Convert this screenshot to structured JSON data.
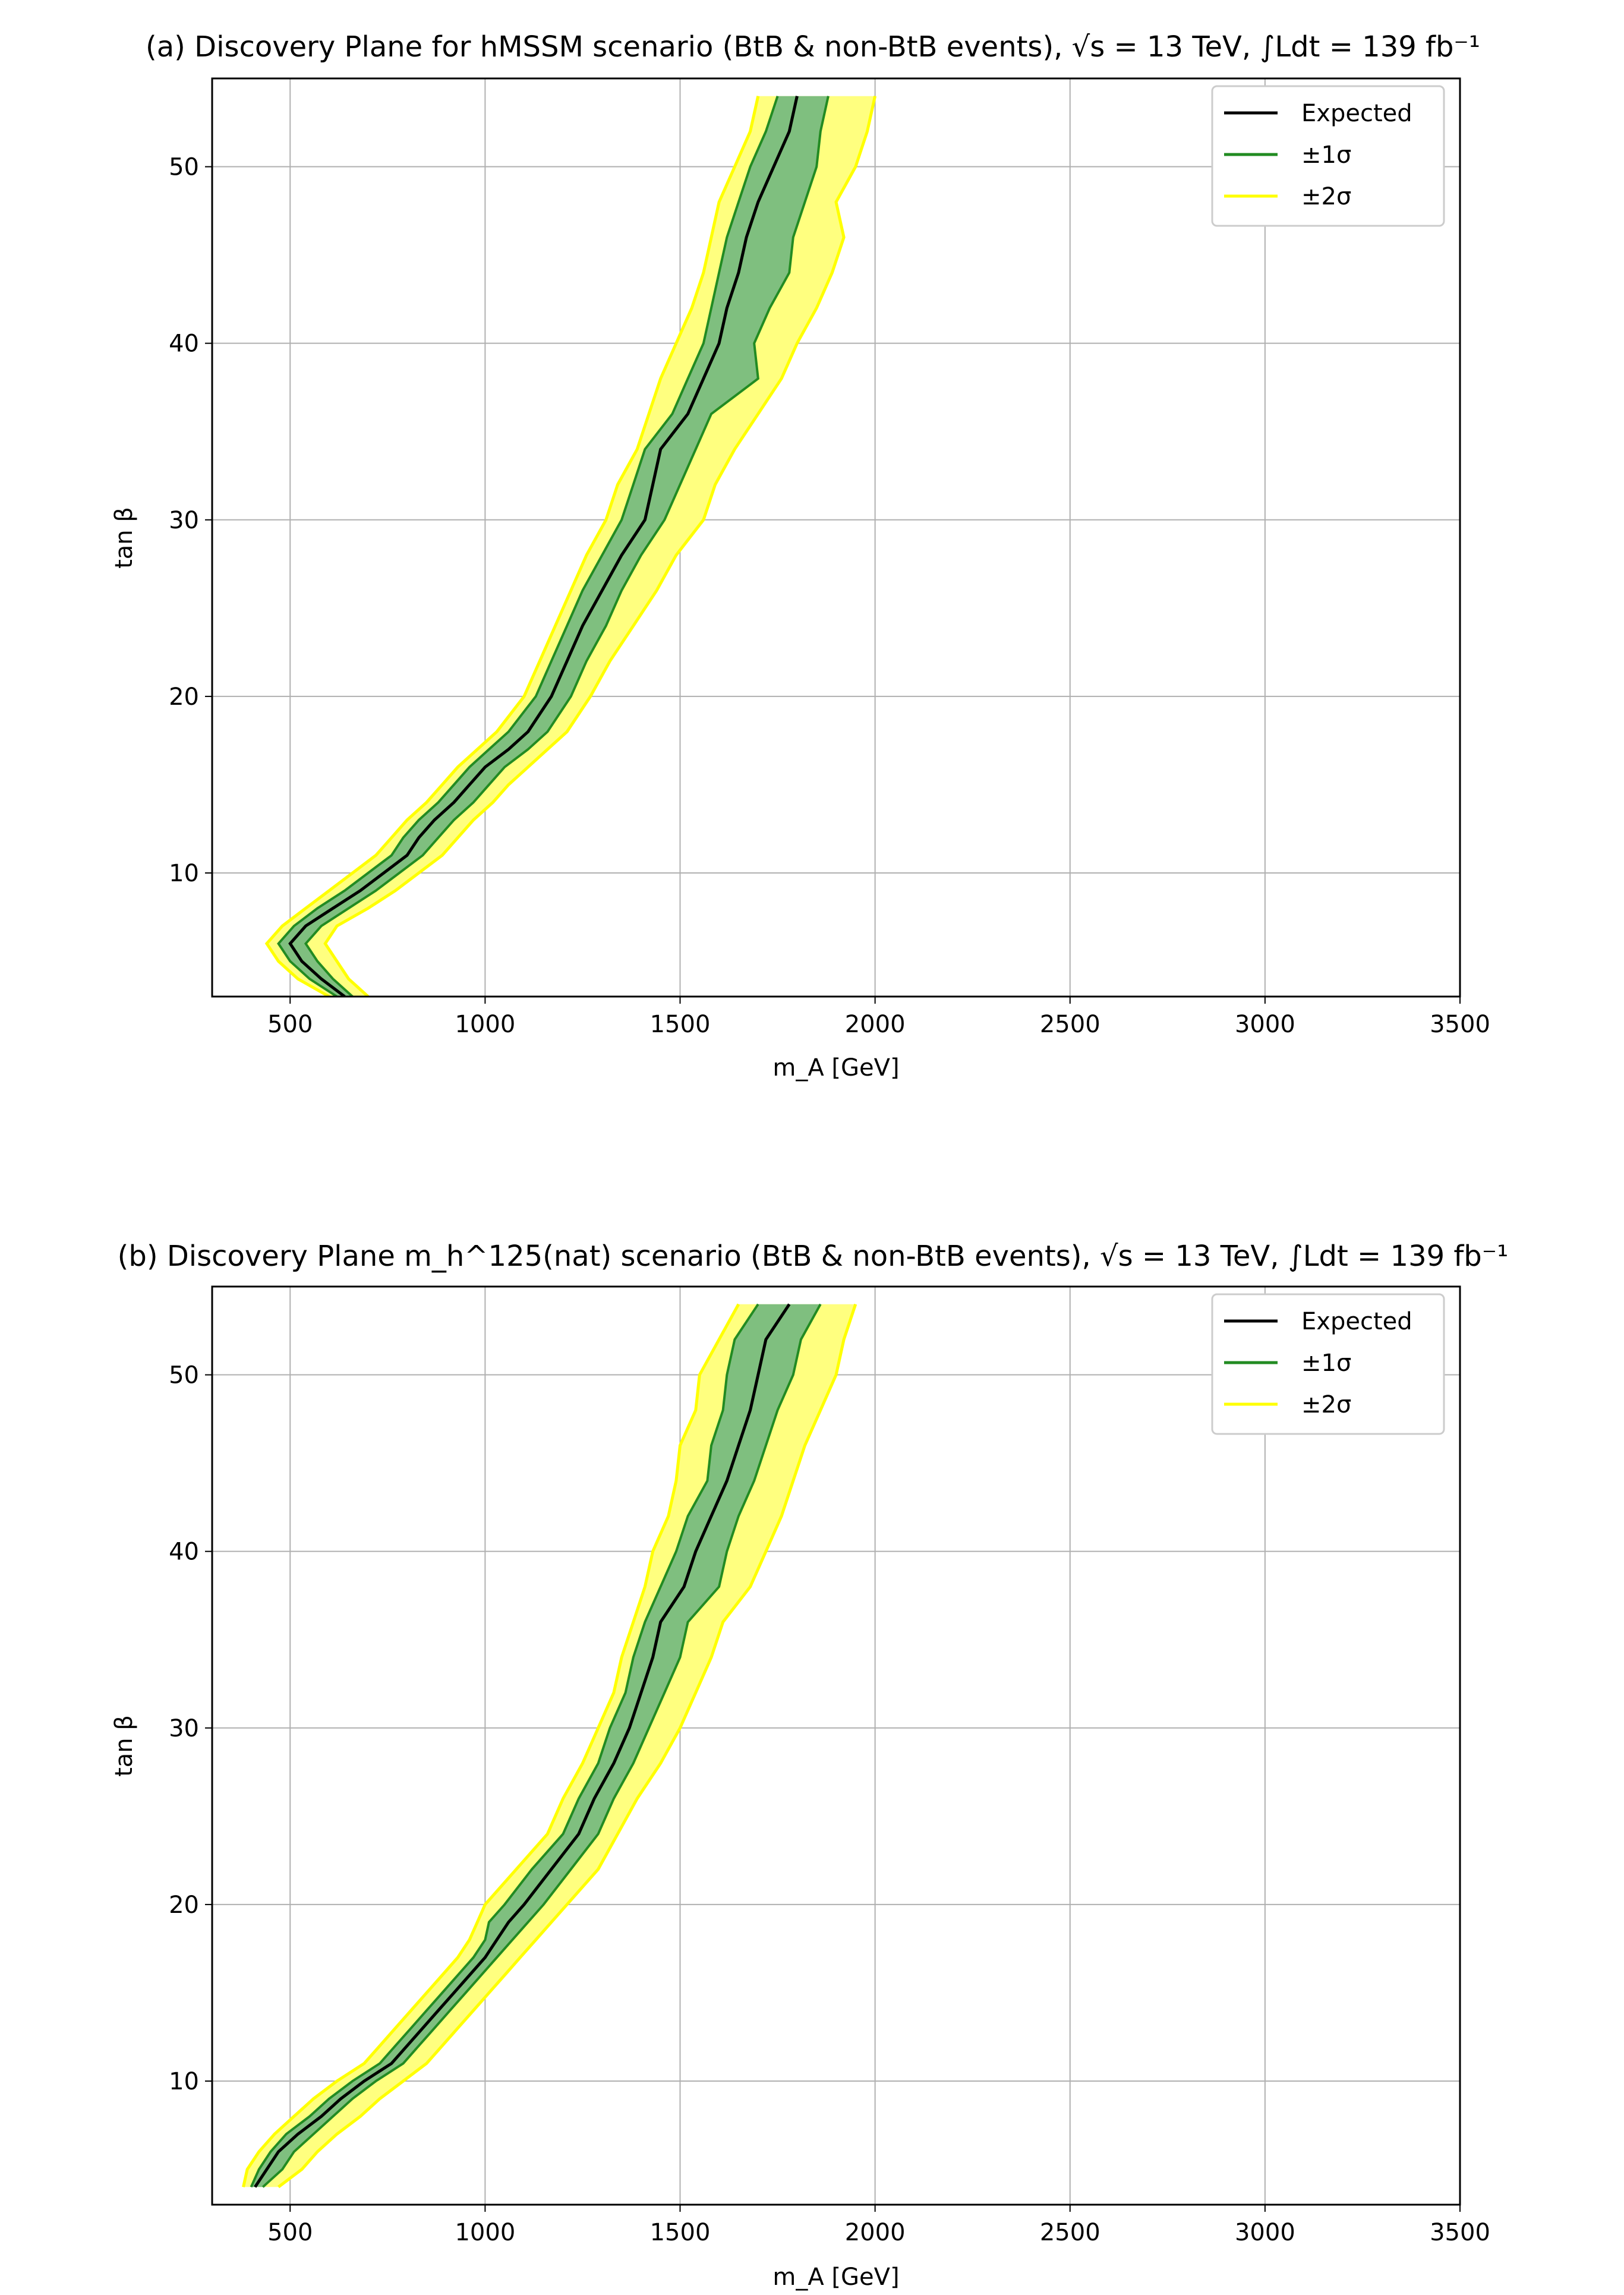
{
  "chart_data": [
    {
      "type": "line",
      "title": "(a) Discovery Plane for hMSSM scenario (BtB & non-BtB events), √s = 13 TeV, ∫Ldt = 139 fb⁻¹",
      "xlabel": "m_A [GeV]",
      "ylabel": "tan β",
      "xlim": [
        300,
        3500
      ],
      "ylim": [
        3,
        55
      ],
      "xticks": [
        "500",
        "1000",
        "1500",
        "2000",
        "2500",
        "3000",
        "3500"
      ],
      "yticks": [
        "10",
        "20",
        "30",
        "40",
        "50"
      ],
      "grid": true,
      "legend_position": "top-right",
      "legend": [
        "Expected",
        "±1σ",
        "±2σ"
      ],
      "colors": {
        "expected": "#000000",
        "one_sigma": "#228b22",
        "one_sigma_fill": "#7fbf7f",
        "two_sigma": "#ffff00",
        "two_sigma_fill": "#ffff7f"
      },
      "series": [
        {
          "name": "Expected",
          "y": [
            3,
            4,
            5,
            6,
            7,
            8,
            9,
            10,
            11,
            12,
            13,
            14,
            15,
            16,
            17,
            18,
            20,
            22,
            24,
            26,
            28,
            30,
            32,
            34,
            36,
            38,
            40,
            42,
            44,
            46,
            48,
            50,
            52,
            54
          ],
          "x": [
            640,
            580,
            530,
            500,
            540,
            610,
            680,
            740,
            800,
            830,
            870,
            920,
            960,
            1000,
            1060,
            1110,
            1170,
            1210,
            1250,
            1300,
            1350,
            1410,
            1430,
            1450,
            1520,
            1560,
            1600,
            1620,
            1650,
            1670,
            1700,
            1740,
            1780,
            1800
          ]
        },
        {
          "name": "±1σ low",
          "y": [
            3,
            4,
            5,
            6,
            7,
            8,
            9,
            10,
            11,
            12,
            13,
            14,
            15,
            16,
            17,
            18,
            20,
            22,
            24,
            26,
            28,
            30,
            32,
            34,
            36,
            38,
            40,
            42,
            44,
            46,
            48,
            50,
            52,
            54
          ],
          "x": [
            620,
            550,
            500,
            470,
            510,
            570,
            640,
            700,
            760,
            790,
            830,
            880,
            920,
            960,
            1010,
            1060,
            1130,
            1170,
            1210,
            1250,
            1300,
            1350,
            1380,
            1410,
            1480,
            1520,
            1560,
            1580,
            1600,
            1620,
            1650,
            1680,
            1720,
            1750
          ]
        },
        {
          "name": "±1σ high",
          "y": [
            3,
            4,
            5,
            6,
            7,
            8,
            9,
            10,
            11,
            12,
            13,
            14,
            15,
            16,
            17,
            18,
            20,
            22,
            24,
            26,
            28,
            30,
            32,
            34,
            36,
            38,
            40,
            42,
            44,
            46,
            48,
            50,
            52,
            54
          ],
          "x": [
            660,
            610,
            570,
            540,
            580,
            650,
            720,
            780,
            840,
            880,
            920,
            970,
            1010,
            1050,
            1110,
            1160,
            1220,
            1260,
            1310,
            1350,
            1400,
            1460,
            1500,
            1540,
            1580,
            1700,
            1690,
            1730,
            1780,
            1790,
            1820,
            1850,
            1860,
            1880
          ]
        },
        {
          "name": "±2σ low",
          "y": [
            3,
            4,
            5,
            6,
            7,
            8,
            9,
            10,
            11,
            12,
            13,
            14,
            15,
            16,
            17,
            18,
            20,
            22,
            24,
            26,
            28,
            30,
            32,
            34,
            36,
            38,
            40,
            42,
            44,
            46,
            48,
            50,
            52,
            54
          ],
          "x": [
            600,
            520,
            470,
            440,
            480,
            540,
            600,
            660,
            720,
            760,
            800,
            850,
            890,
            930,
            980,
            1030,
            1100,
            1140,
            1180,
            1220,
            1260,
            1310,
            1340,
            1390,
            1420,
            1450,
            1490,
            1530,
            1560,
            1580,
            1600,
            1640,
            1680,
            1700
          ]
        },
        {
          "name": "±2σ high",
          "y": [
            3,
            4,
            5,
            6,
            7,
            8,
            9,
            10,
            11,
            12,
            13,
            14,
            15,
            16,
            17,
            18,
            20,
            22,
            24,
            26,
            28,
            30,
            32,
            34,
            36,
            38,
            40,
            42,
            44,
            46,
            48,
            50,
            52,
            54
          ],
          "x": [
            700,
            650,
            620,
            590,
            620,
            700,
            770,
            830,
            890,
            930,
            970,
            1020,
            1060,
            1110,
            1160,
            1210,
            1270,
            1320,
            1380,
            1440,
            1490,
            1560,
            1590,
            1640,
            1700,
            1760,
            1800,
            1850,
            1890,
            1920,
            1900,
            1950,
            1980,
            2000
          ]
        }
      ]
    },
    {
      "type": "line",
      "title": "(b) Discovery Plane m_h^125(nat) scenario (BtB & non-BtB events), √s = 13 TeV, ∫Ldt = 139 fb⁻¹",
      "xlabel": "m_A [GeV]",
      "ylabel": "tan β",
      "xlim": [
        300,
        3500
      ],
      "ylim": [
        3,
        55
      ],
      "xticks": [
        "500",
        "1000",
        "1500",
        "2000",
        "2500",
        "3000",
        "3500"
      ],
      "yticks": [
        "10",
        "20",
        "30",
        "40",
        "50"
      ],
      "grid": true,
      "legend_position": "top-right",
      "legend": [
        "Expected",
        "±1σ",
        "±2σ"
      ],
      "colors": {
        "expected": "#000000",
        "one_sigma": "#228b22",
        "one_sigma_fill": "#7fbf7f",
        "two_sigma": "#ffff00",
        "two_sigma_fill": "#ffff7f"
      },
      "series": [
        {
          "name": "Expected",
          "y": [
            4,
            5,
            6,
            7,
            8,
            9,
            10,
            11,
            12,
            13,
            14,
            15,
            16,
            17,
            18,
            19,
            20,
            22,
            24,
            26,
            28,
            30,
            32,
            34,
            36,
            38,
            40,
            42,
            44,
            46,
            48,
            50,
            52,
            54
          ],
          "x": [
            410,
            440,
            470,
            520,
            580,
            630,
            690,
            760,
            800,
            840,
            880,
            920,
            960,
            1000,
            1030,
            1060,
            1100,
            1170,
            1240,
            1280,
            1330,
            1370,
            1400,
            1430,
            1450,
            1510,
            1540,
            1580,
            1620,
            1650,
            1680,
            1700,
            1720,
            1780
          ]
        },
        {
          "name": "±1σ low",
          "y": [
            4,
            5,
            6,
            7,
            8,
            9,
            10,
            11,
            12,
            13,
            14,
            15,
            16,
            17,
            18,
            19,
            20,
            22,
            24,
            26,
            28,
            30,
            32,
            34,
            36,
            38,
            40,
            42,
            44,
            46,
            48,
            50,
            52,
            54
          ],
          "x": [
            400,
            420,
            450,
            490,
            550,
            600,
            660,
            730,
            770,
            810,
            850,
            890,
            930,
            970,
            1000,
            1010,
            1050,
            1120,
            1200,
            1240,
            1290,
            1320,
            1360,
            1380,
            1410,
            1450,
            1490,
            1520,
            1570,
            1580,
            1610,
            1620,
            1640,
            1700
          ]
        },
        {
          "name": "±1σ high",
          "y": [
            4,
            5,
            6,
            7,
            8,
            9,
            10,
            11,
            12,
            13,
            14,
            15,
            16,
            17,
            18,
            19,
            20,
            22,
            24,
            26,
            28,
            30,
            32,
            34,
            36,
            38,
            40,
            42,
            44,
            46,
            48,
            50,
            52,
            54
          ],
          "x": [
            430,
            480,
            510,
            560,
            610,
            660,
            720,
            790,
            830,
            870,
            910,
            950,
            990,
            1030,
            1070,
            1110,
            1150,
            1220,
            1290,
            1330,
            1380,
            1420,
            1460,
            1500,
            1520,
            1600,
            1620,
            1650,
            1690,
            1720,
            1750,
            1790,
            1810,
            1860
          ]
        },
        {
          "name": "±2σ low",
          "y": [
            4,
            5,
            6,
            7,
            8,
            9,
            10,
            11,
            12,
            13,
            14,
            15,
            16,
            17,
            18,
            19,
            20,
            22,
            24,
            26,
            28,
            30,
            32,
            34,
            36,
            38,
            40,
            42,
            44,
            46,
            48,
            50,
            52,
            54
          ],
          "x": [
            380,
            390,
            420,
            460,
            510,
            560,
            620,
            690,
            730,
            770,
            810,
            850,
            890,
            930,
            960,
            980,
            1000,
            1080,
            1160,
            1200,
            1250,
            1290,
            1330,
            1350,
            1380,
            1410,
            1430,
            1470,
            1490,
            1500,
            1540,
            1550,
            1600,
            1650
          ]
        },
        {
          "name": "±2σ high",
          "y": [
            4,
            5,
            6,
            7,
            8,
            9,
            10,
            11,
            12,
            13,
            14,
            15,
            16,
            17,
            18,
            19,
            20,
            22,
            24,
            26,
            28,
            30,
            32,
            34,
            36,
            38,
            40,
            42,
            44,
            46,
            48,
            50,
            52,
            54
          ],
          "x": [
            470,
            530,
            570,
            620,
            680,
            730,
            790,
            850,
            890,
            930,
            970,
            1010,
            1050,
            1090,
            1130,
            1170,
            1210,
            1290,
            1340,
            1390,
            1450,
            1500,
            1540,
            1580,
            1610,
            1680,
            1720,
            1760,
            1790,
            1820,
            1860,
            1900,
            1920,
            1950
          ]
        }
      ]
    }
  ]
}
